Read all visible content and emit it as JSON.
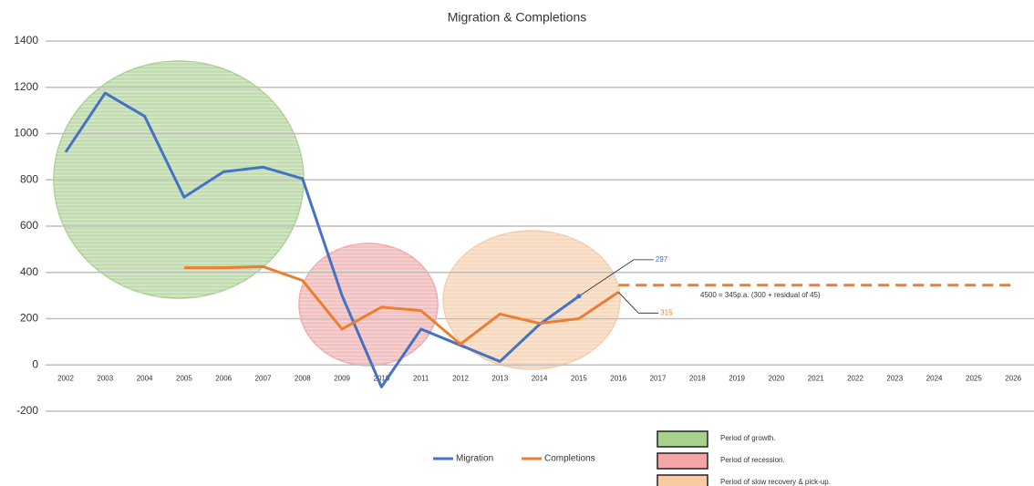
{
  "chart_data": {
    "type": "line",
    "title": "Migration & Completions",
    "categories": [
      "2002",
      "2003",
      "2004",
      "2005",
      "2006",
      "2007",
      "2008",
      "2009",
      "2010",
      "2011",
      "2012",
      "2013",
      "2014",
      "2015",
      "2016",
      "2017",
      "2018",
      "2019",
      "2020",
      "2021",
      "2022",
      "2023",
      "2024",
      "2025",
      "2026"
    ],
    "series": [
      {
        "name": "Migration",
        "color": "#4472c4",
        "values": [
          920,
          1175,
          1075,
          725,
          835,
          855,
          805,
          300,
          -95,
          155,
          85,
          15,
          175,
          297,
          null,
          null,
          null,
          null,
          null,
          null,
          null,
          null,
          null,
          null,
          null
        ]
      },
      {
        "name": "Completions",
        "color": "#ed7d31",
        "values": [
          null,
          null,
          null,
          420,
          420,
          425,
          365,
          155,
          250,
          235,
          90,
          220,
          180,
          200,
          315,
          null,
          null,
          null,
          null,
          null,
          null,
          null,
          null,
          null,
          null
        ]
      }
    ],
    "projection": {
      "text": "4500 = 345p.a. (300 + residual of 45)",
      "value": 345,
      "from": "2016",
      "to": "2026",
      "color": "#ed7d31"
    },
    "ylim": [
      -200,
      1400
    ],
    "yticks": [
      -200,
      0,
      200,
      400,
      600,
      800,
      1000,
      1200,
      1400
    ],
    "grid": true,
    "periods": [
      {
        "label": "Period of growth.",
        "color": "#a9d18e"
      },
      {
        "label": "Period of recession.",
        "color": "#f4a6a6"
      },
      {
        "label": "Period of slow recovery & pick-up.",
        "color": "#f8cba3"
      }
    ]
  }
}
